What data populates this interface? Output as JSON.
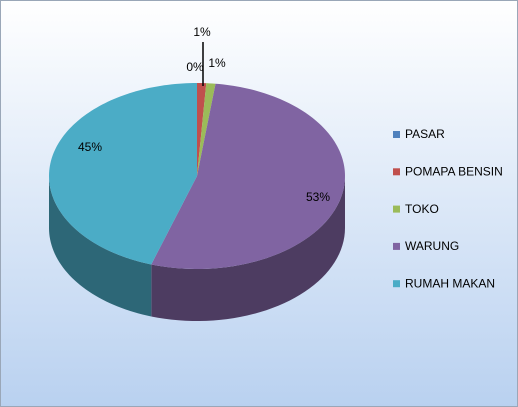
{
  "chart_data": {
    "type": "pie",
    "categories": [
      "PASAR",
      "POMAPA BENSIN",
      "TOKO",
      "WARUNG",
      "RUMAH MAKAN"
    ],
    "values": [
      0,
      1,
      1,
      53,
      45
    ],
    "value_labels": [
      "0%",
      "1%",
      "1%",
      "53%",
      "45%"
    ],
    "colors": [
      "#4f81bd",
      "#c0504d",
      "#9bbb59",
      "#8064a2",
      "#4bacc6"
    ],
    "legend": "right"
  }
}
